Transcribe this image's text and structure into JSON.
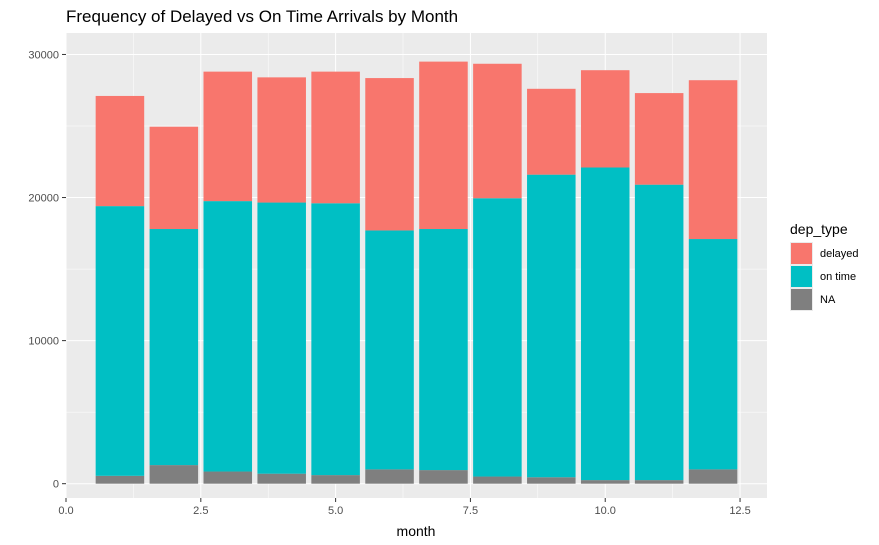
{
  "chart_data": {
    "type": "bar",
    "stacked": true,
    "title": "Frequency of Delayed vs On Time Arrivals by Month",
    "xlabel": "month",
    "ylabel": "",
    "xlim": [
      0,
      13
    ],
    "ylim": [
      -1000,
      31500
    ],
    "x_ticks": [
      {
        "value": 0,
        "label": "0.0"
      },
      {
        "value": 2.5,
        "label": "2.5"
      },
      {
        "value": 5,
        "label": "5.0"
      },
      {
        "value": 7.5,
        "label": "7.5"
      },
      {
        "value": 10,
        "label": "10.0"
      },
      {
        "value": 12.5,
        "label": "12.5"
      }
    ],
    "y_ticks": [
      {
        "value": 0,
        "label": "0"
      },
      {
        "value": 10000,
        "label": "10000"
      },
      {
        "value": 20000,
        "label": "20000"
      },
      {
        "value": 30000,
        "label": "30000"
      }
    ],
    "x": [
      1,
      2,
      3,
      4,
      5,
      6,
      7,
      8,
      9,
      10,
      11,
      12
    ],
    "series": [
      {
        "name": "NA",
        "color": "#7f7f7f",
        "values": [
          550,
          1300,
          850,
          700,
          600,
          1000,
          950,
          500,
          450,
          250,
          250,
          1000
        ]
      },
      {
        "name": "on time",
        "color": "#00bfc4",
        "values": [
          18850,
          16500,
          18900,
          18950,
          19000,
          16700,
          16850,
          19450,
          21150,
          21850,
          20650,
          16100
        ]
      },
      {
        "name": "delayed",
        "color": "#f8766d",
        "values": [
          7700,
          7150,
          9050,
          8750,
          9200,
          10650,
          11700,
          9400,
          6000,
          6800,
          6400,
          11100
        ]
      }
    ],
    "legend": {
      "title": "dep_type",
      "placement": "right",
      "items": [
        {
          "label": "delayed",
          "color": "#f8766d"
        },
        {
          "label": "on time",
          "color": "#00bfc4"
        },
        {
          "label": "NA",
          "color": "#7f7f7f"
        }
      ]
    },
    "grid": true,
    "panel_background": "#ebebeb",
    "grid_color": "#ffffff"
  }
}
